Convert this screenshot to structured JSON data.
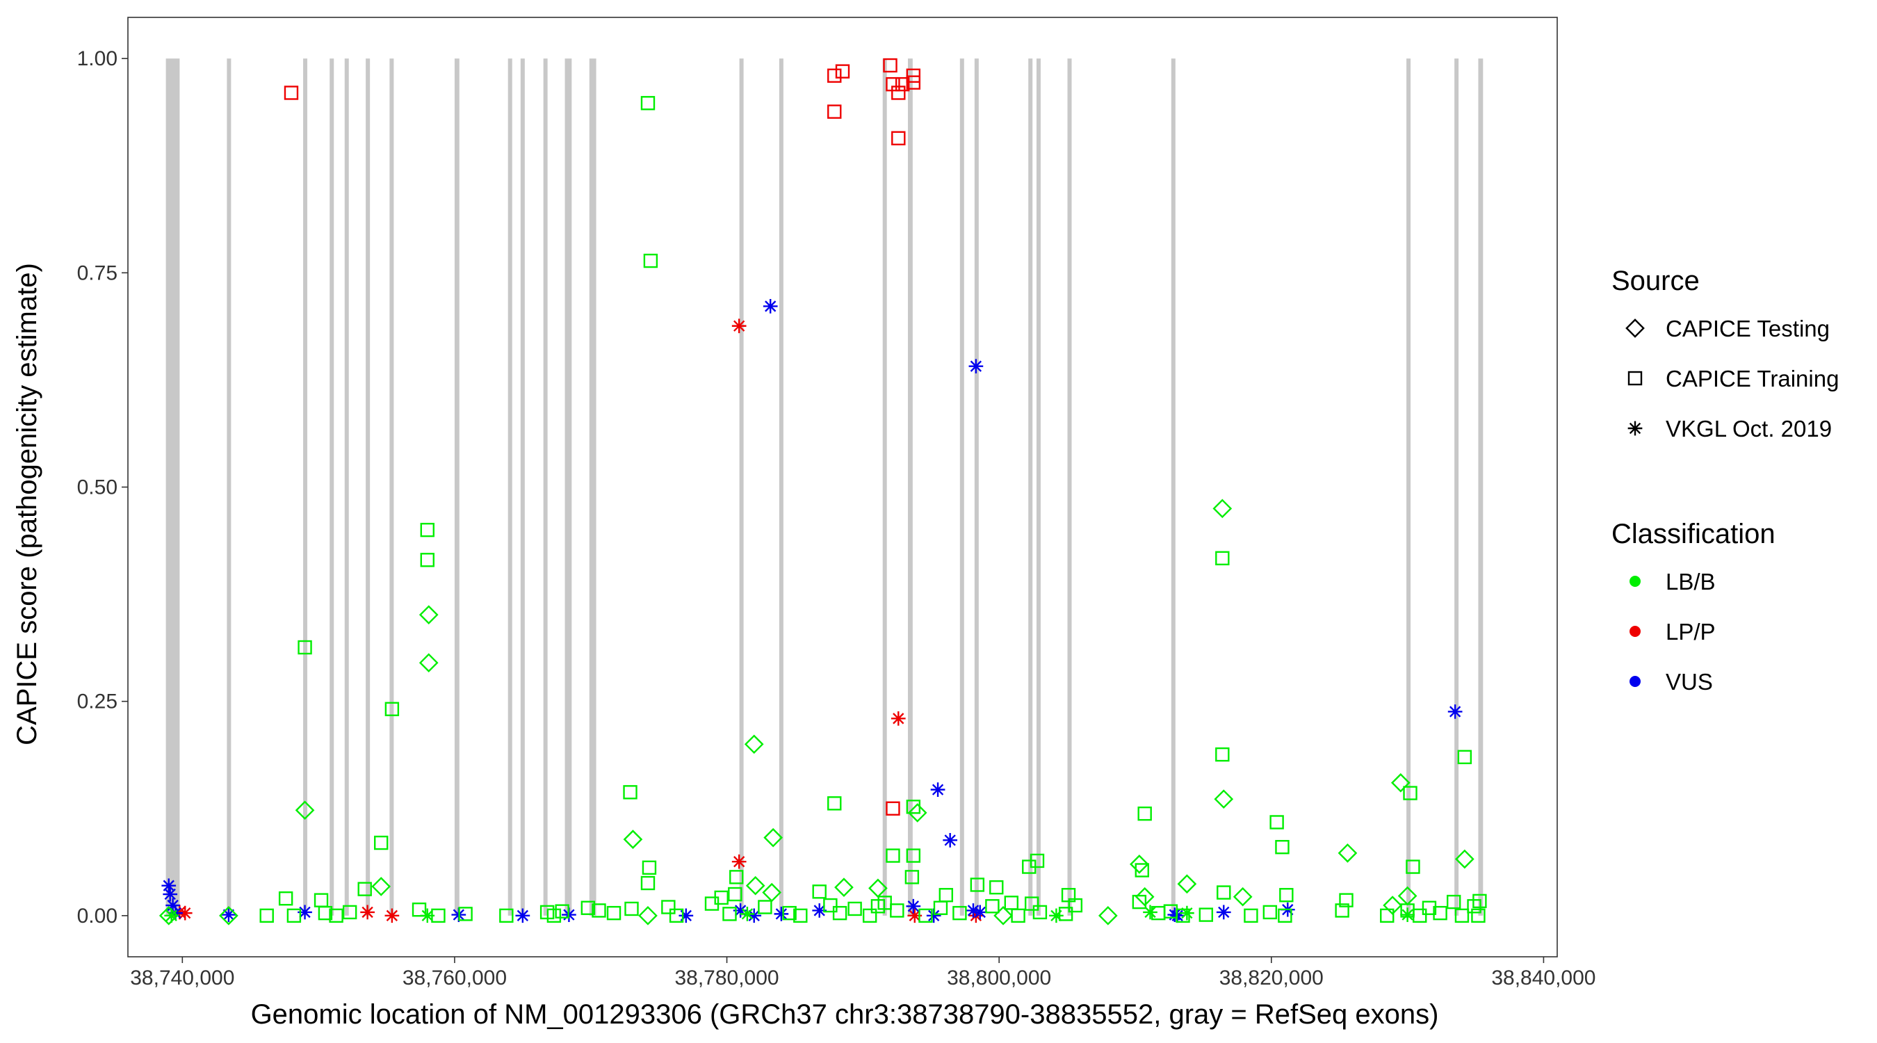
{
  "chart_data": {
    "type": "scatter",
    "title": "",
    "xlabel": "Genomic location of NM_001293306 (GRCh37 chr3:38738790-38835552, gray = RefSeq exons)",
    "ylabel": "CAPICE score (pathogenicity estimate)",
    "xlim": [
      38736000,
      38841000
    ],
    "ylim": [
      -0.048,
      1.048
    ],
    "x_ticks": [
      38740000,
      38760000,
      38780000,
      38800000,
      38820000,
      38840000
    ],
    "x_tick_labels": [
      "38,740,000",
      "38,760,000",
      "38,780,000",
      "38,800,000",
      "38,820,000",
      "38,840,000"
    ],
    "y_ticks": [
      0,
      0.25,
      0.5,
      0.75,
      1.0
    ],
    "y_tick_labels": [
      "0.00",
      "0.25",
      "0.50",
      "0.75",
      "1.00"
    ],
    "grid": false,
    "legend_position": "right",
    "exons": [
      [
        38738790,
        38739800
      ],
      [
        38743300,
        38743550
      ],
      [
        38748900,
        38749150
      ],
      [
        38750900,
        38751050
      ],
      [
        38752000,
        38752150
      ],
      [
        38753500,
        38753750
      ],
      [
        38755300,
        38755450
      ],
      [
        38760000,
        38760350
      ],
      [
        38764000,
        38764150
      ],
      [
        38764900,
        38765100
      ],
      [
        38766600,
        38766750
      ],
      [
        38768100,
        38768600
      ],
      [
        38769900,
        38770400
      ],
      [
        38781000,
        38781150
      ],
      [
        38783900,
        38784100
      ],
      [
        38791500,
        38791700
      ],
      [
        38793300,
        38793650
      ],
      [
        38797200,
        38797350
      ],
      [
        38798200,
        38798500
      ],
      [
        38802200,
        38802400
      ],
      [
        38802800,
        38803000
      ],
      [
        38805100,
        38805250
      ],
      [
        38812700,
        38812900
      ],
      [
        38830000,
        38830150
      ],
      [
        38833500,
        38833700
      ],
      [
        38835200,
        38835552
      ]
    ],
    "legend": {
      "source_title": "Source",
      "source_items": [
        {
          "shape": "diamond",
          "label": "CAPICE Testing"
        },
        {
          "shape": "square",
          "label": "CAPICE Training"
        },
        {
          "shape": "asterisk",
          "label": "VKGL Oct. 2019"
        }
      ],
      "class_title": "Classification",
      "class_items": [
        {
          "color": "#00ee00",
          "label": "LB/B"
        },
        {
          "color": "#ee0000",
          "label": "LP/P"
        },
        {
          "color": "#0000ee",
          "label": "VUS"
        }
      ]
    },
    "series": [
      {
        "source": "CAPICE Training",
        "classification": "LP/P",
        "points": [
          [
            38748000,
            0.96
          ],
          [
            38787900,
            0.98
          ],
          [
            38788500,
            0.985
          ],
          [
            38787900,
            0.938
          ],
          [
            38792000,
            0.992
          ],
          [
            38792200,
            0.97
          ],
          [
            38792600,
            0.96
          ],
          [
            38792900,
            0.97
          ],
          [
            38793700,
            0.98
          ],
          [
            38793700,
            0.972
          ],
          [
            38792600,
            0.907
          ],
          [
            38792200,
            0.125
          ]
        ]
      },
      {
        "source": "VKGL Oct. 2019",
        "classification": "LP/P",
        "points": [
          [
            38780900,
            0.688
          ],
          [
            38792600,
            0.23
          ],
          [
            38780900,
            0.063
          ],
          [
            38739800,
            0.004
          ],
          [
            38740200,
            0.003
          ],
          [
            38753600,
            0.004
          ],
          [
            38755400,
            0.0
          ],
          [
            38793800,
            0.0
          ],
          [
            38798300,
            0.0
          ]
        ]
      },
      {
        "source": "VKGL Oct. 2019",
        "classification": "VUS",
        "points": [
          [
            38783200,
            0.711
          ],
          [
            38798300,
            0.641
          ],
          [
            38795500,
            0.147
          ],
          [
            38796400,
            0.088
          ],
          [
            38833500,
            0.238
          ],
          [
            38739000,
            0.035
          ],
          [
            38739100,
            0.025
          ],
          [
            38739300,
            0.012
          ],
          [
            38739500,
            0.003
          ],
          [
            38743400,
            0.001
          ],
          [
            38749000,
            0.004
          ],
          [
            38760300,
            0.001
          ],
          [
            38765000,
            0.0
          ],
          [
            38768400,
            0.001
          ],
          [
            38777000,
            0.0
          ],
          [
            38781000,
            0.006
          ],
          [
            38782000,
            0.0
          ],
          [
            38784000,
            0.002
          ],
          [
            38786800,
            0.006
          ],
          [
            38793700,
            0.011
          ],
          [
            38795200,
            0.0
          ],
          [
            38798100,
            0.006
          ],
          [
            38798600,
            0.004
          ],
          [
            38812900,
            0.001
          ],
          [
            38813100,
            0.0
          ],
          [
            38816500,
            0.004
          ],
          [
            38821200,
            0.007
          ]
        ]
      },
      {
        "source": "VKGL Oct. 2019",
        "classification": "LB/B",
        "points": [
          [
            38739200,
            0.0
          ],
          [
            38758000,
            0.0
          ],
          [
            38781500,
            0.002
          ],
          [
            38804200,
            0.0
          ],
          [
            38811100,
            0.004
          ],
          [
            38813800,
            0.003
          ],
          [
            38830000,
            0.001
          ]
        ]
      },
      {
        "source": "CAPICE Testing",
        "classification": "LB/B",
        "points": [
          [
            38749000,
            0.123
          ],
          [
            38754600,
            0.034
          ],
          [
            38758100,
            0.351
          ],
          [
            38758100,
            0.295
          ],
          [
            38773100,
            0.089
          ],
          [
            38782000,
            0.2
          ],
          [
            38782100,
            0.035
          ],
          [
            38783400,
            0.091
          ],
          [
            38783300,
            0.027
          ],
          [
            38788600,
            0.033
          ],
          [
            38791100,
            0.032
          ],
          [
            38794000,
            0.12
          ],
          [
            38810300,
            0.06
          ],
          [
            38810700,
            0.022
          ],
          [
            38813800,
            0.037
          ],
          [
            38816400,
            0.475
          ],
          [
            38816500,
            0.136
          ],
          [
            38817900,
            0.022
          ],
          [
            38825600,
            0.073
          ],
          [
            38828900,
            0.012
          ],
          [
            38829500,
            0.155
          ],
          [
            38830000,
            0.023
          ],
          [
            38834200,
            0.066
          ],
          [
            38739000,
            0.0
          ],
          [
            38743400,
            0.0
          ],
          [
            38774200,
            0.0
          ],
          [
            38800300,
            0.0
          ],
          [
            38808000,
            0.0
          ]
        ]
      },
      {
        "source": "CAPICE Training",
        "classification": "LB/B",
        "points": [
          [
            38749000,
            0.313
          ],
          [
            38755400,
            0.241
          ],
          [
            38758000,
            0.45
          ],
          [
            38758000,
            0.415
          ],
          [
            38754600,
            0.085
          ],
          [
            38753400,
            0.031
          ],
          [
            38774200,
            0.948
          ],
          [
            38774400,
            0.764
          ],
          [
            38772900,
            0.144
          ],
          [
            38774300,
            0.056
          ],
          [
            38774200,
            0.038
          ],
          [
            38787900,
            0.131
          ],
          [
            38792200,
            0.07
          ],
          [
            38793700,
            0.127
          ],
          [
            38793700,
            0.07
          ],
          [
            38793600,
            0.045
          ],
          [
            38816400,
            0.417
          ],
          [
            38816400,
            0.188
          ],
          [
            38810700,
            0.119
          ],
          [
            38820400,
            0.109
          ],
          [
            38820800,
            0.08
          ],
          [
            38830200,
            0.143
          ],
          [
            38834200,
            0.185
          ],
          [
            38830400,
            0.057
          ],
          [
            38802200,
            0.057
          ],
          [
            38802800,
            0.064
          ],
          [
            38799800,
            0.033
          ],
          [
            38798400,
            0.036
          ],
          [
            38747600,
            0.02
          ],
          [
            38750200,
            0.018
          ],
          [
            38786800,
            0.028
          ],
          [
            38805100,
            0.024
          ],
          [
            38821100,
            0.024
          ],
          [
            38780700,
            0.045
          ],
          [
            38780600,
            0.025
          ],
          [
            38791600,
            0.015
          ],
          [
            38816500,
            0.027
          ],
          [
            38810500,
            0.053
          ],
          [
            38825500,
            0.018
          ],
          [
            38796100,
            0.024
          ],
          [
            38746200,
            0.0
          ],
          [
            38748200,
            0.0
          ],
          [
            38750500,
            0.003
          ],
          [
            38751300,
            0.0
          ],
          [
            38752300,
            0.004
          ],
          [
            38757400,
            0.007
          ],
          [
            38758800,
            0.0
          ],
          [
            38760800,
            0.002
          ],
          [
            38763800,
            0.0
          ],
          [
            38766800,
            0.004
          ],
          [
            38767900,
            0.005
          ],
          [
            38769800,
            0.009
          ],
          [
            38770600,
            0.006
          ],
          [
            38771700,
            0.003
          ],
          [
            38773000,
            0.008
          ],
          [
            38775700,
            0.01
          ],
          [
            38778900,
            0.014
          ],
          [
            38779600,
            0.021
          ],
          [
            38780200,
            0.002
          ],
          [
            38782800,
            0.01
          ],
          [
            38785400,
            0.0
          ],
          [
            38787600,
            0.012
          ],
          [
            38788300,
            0.003
          ],
          [
            38789400,
            0.008
          ],
          [
            38790500,
            0.0
          ],
          [
            38791100,
            0.011
          ],
          [
            38792500,
            0.006
          ],
          [
            38794600,
            0.0
          ],
          [
            38795700,
            0.009
          ],
          [
            38797100,
            0.003
          ],
          [
            38799500,
            0.011
          ],
          [
            38801400,
            0.0
          ],
          [
            38802400,
            0.014
          ],
          [
            38803000,
            0.004
          ],
          [
            38804900,
            0.002
          ],
          [
            38805600,
            0.012
          ],
          [
            38810300,
            0.016
          ],
          [
            38811700,
            0.003
          ],
          [
            38813500,
            0.0
          ],
          [
            38815200,
            0.001
          ],
          [
            38818500,
            0.0
          ],
          [
            38819900,
            0.004
          ],
          [
            38821000,
            0.0
          ],
          [
            38825200,
            0.006
          ],
          [
            38828500,
            0.0
          ],
          [
            38830000,
            0.006
          ],
          [
            38830900,
            0.0
          ],
          [
            38831600,
            0.009
          ],
          [
            38832400,
            0.003
          ],
          [
            38833400,
            0.016
          ],
          [
            38834000,
            0.0
          ],
          [
            38834900,
            0.011
          ],
          [
            38835300,
            0.017
          ],
          [
            38835200,
            0.0
          ],
          [
            38784600,
            0.003
          ],
          [
            38767300,
            0.0
          ],
          [
            38776300,
            0.0
          ],
          [
            38800900,
            0.015
          ],
          [
            38812600,
            0.005
          ]
        ]
      }
    ]
  }
}
